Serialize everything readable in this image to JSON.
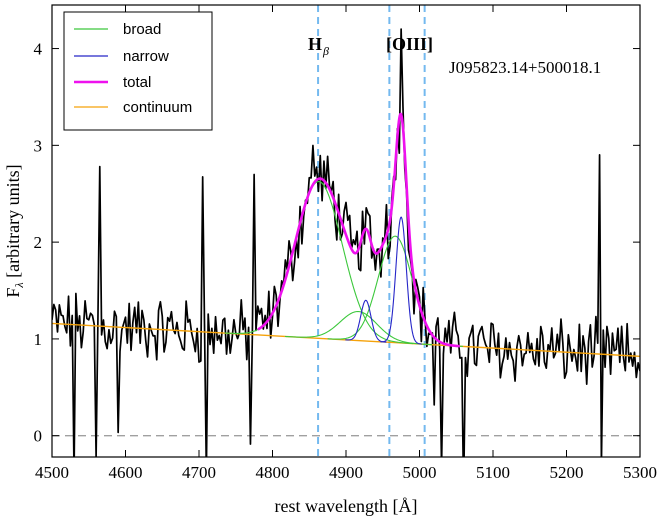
{
  "chart_data": {
    "type": "line",
    "title": "",
    "object_label": "J095823.14+500018.1",
    "xlabel": "rest wavelength [Å]",
    "ylabel_main": "F",
    "ylabel_sub": "λ",
    "ylabel_rest": " [arbitrary units]",
    "xlim": [
      4500,
      5300
    ],
    "ylim": [
      -0.22,
      4.45
    ],
    "xticks": [
      4500,
      4600,
      4700,
      4800,
      4900,
      5000,
      5100,
      5200,
      5300
    ],
    "yticks": [
      0,
      1,
      2,
      3,
      4
    ],
    "zero_line": {
      "y": 0,
      "style": "dashed",
      "color": "#a0a0a0"
    },
    "vlines": [
      {
        "x": 4862,
        "label_main": "H",
        "label_sub": "β"
      },
      {
        "x": 4959,
        "label_main": "[OIII]",
        "label_sub": ""
      },
      {
        "x": 5007,
        "label_main": "",
        "label_sub": ""
      }
    ],
    "legend": {
      "placement": "top-left",
      "entries": [
        {
          "label": "broad",
          "color": "#3cc83c"
        },
        {
          "label": "narrow",
          "color": "#2626c8"
        },
        {
          "label": "total",
          "color": "#ee11ee"
        },
        {
          "label": "continuum",
          "color": "#f5a20a"
        }
      ]
    },
    "series": [
      {
        "name": "continuum",
        "color": "#f5a20a",
        "type": "linear",
        "x": [
          4500,
          5300
        ],
        "y": [
          1.16,
          0.82
        ]
      },
      {
        "name": "broad",
        "color": "#3cc83c",
        "components": [
          {
            "center": 4863,
            "amp": 1.62,
            "sigma": 32
          },
          {
            "center": 4917,
            "amp": 0.3,
            "sigma": 25
          },
          {
            "center": 4967,
            "amp": 1.1,
            "sigma": 23
          }
        ]
      },
      {
        "name": "narrow",
        "color": "#2626c8",
        "components": [
          {
            "center": 4927,
            "amp": 0.42,
            "sigma": 7
          },
          {
            "center": 4975,
            "amp": 1.3,
            "sigma": 7
          }
        ]
      },
      {
        "name": "total",
        "color": "#ee11ee",
        "x_range": [
          4780,
          5055
        ]
      },
      {
        "name": "observed spectrum",
        "color": "#000000",
        "x_range": [
          4500,
          5300
        ],
        "step": 2.5
      }
    ]
  }
}
